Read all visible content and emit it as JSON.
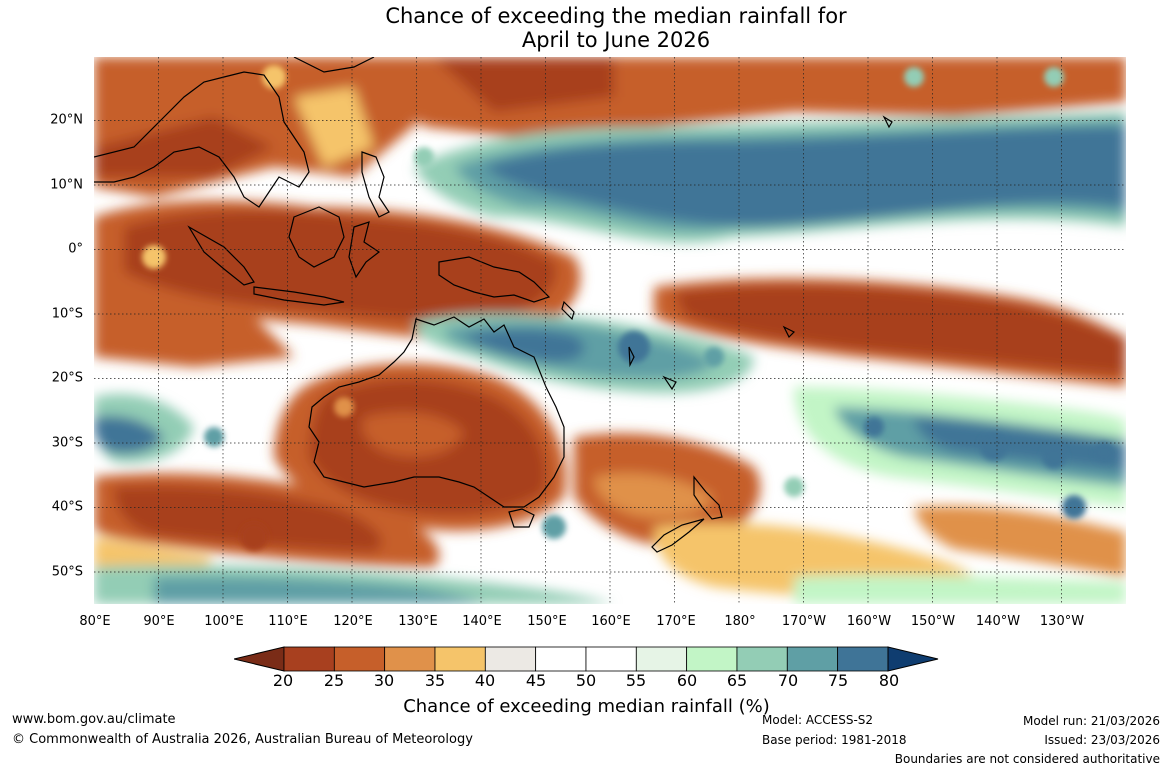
{
  "title": {
    "line1": "Chance of exceeding the median rainfall for",
    "line2": "April to June 2026"
  },
  "map": {
    "region": "Australia, Indo-Pacific and western Pacific Ocean",
    "lat_labels": [
      "20°N",
      "10°N",
      "0°",
      "10°S",
      "20°S",
      "30°S",
      "40°S",
      "50°S"
    ],
    "lon_labels": [
      "80°E",
      "90°E",
      "100°E",
      "110°E",
      "120°E",
      "130°E",
      "140°E",
      "150°E",
      "160°E",
      "170°E",
      "180°",
      "170°W",
      "160°W",
      "150°W",
      "140°W",
      "130°W"
    ],
    "features": [
      {
        "name": "western-pacific-wet-band",
        "category": "80+",
        "description": "strong wet signal north of equator"
      },
      {
        "name": "maritime-continent-dry",
        "category": "<20",
        "description": "strong dry signal over Indonesia"
      },
      {
        "name": "south-pacific-dry-band",
        "category": "<20",
        "description": "dry band south of equator"
      },
      {
        "name": "australia-dry",
        "category": "20-30",
        "description": "drier than normal over most of Australia"
      },
      {
        "name": "northern-australia-wet",
        "category": "70-80",
        "description": "wetter signal over northern Queensland"
      }
    ]
  },
  "colorbar": {
    "ticks": [
      "20",
      "25",
      "30",
      "35",
      "40",
      "45",
      "50",
      "55",
      "60",
      "65",
      "70",
      "75",
      "80"
    ],
    "under_color": "#7a2c17",
    "over_color": "#0f3d70",
    "colors": [
      "#a8401f",
      "#c65f2a",
      "#e0914a",
      "#f5c46a",
      "#ece9e4",
      "#ffffff",
      "#ffffff",
      "#e6f4e6",
      "#c2f5c6",
      "#93cdb5",
      "#5f9fa5",
      "#3f7497"
    ],
    "label": "Chance of exceeding median rainfall (%)"
  },
  "footer": {
    "website": "www.bom.gov.au/climate",
    "copyright": "© Commonwealth of Australia 2026, Australian Bureau of Meteorology",
    "model": "Model: ACCESS-S2",
    "base_period": "Base period: 1981-2018",
    "model_run": "Model run: 21/03/2026",
    "issued": "Issued: 23/03/2026",
    "disclaimer": "Boundaries are not considered authoritative"
  }
}
